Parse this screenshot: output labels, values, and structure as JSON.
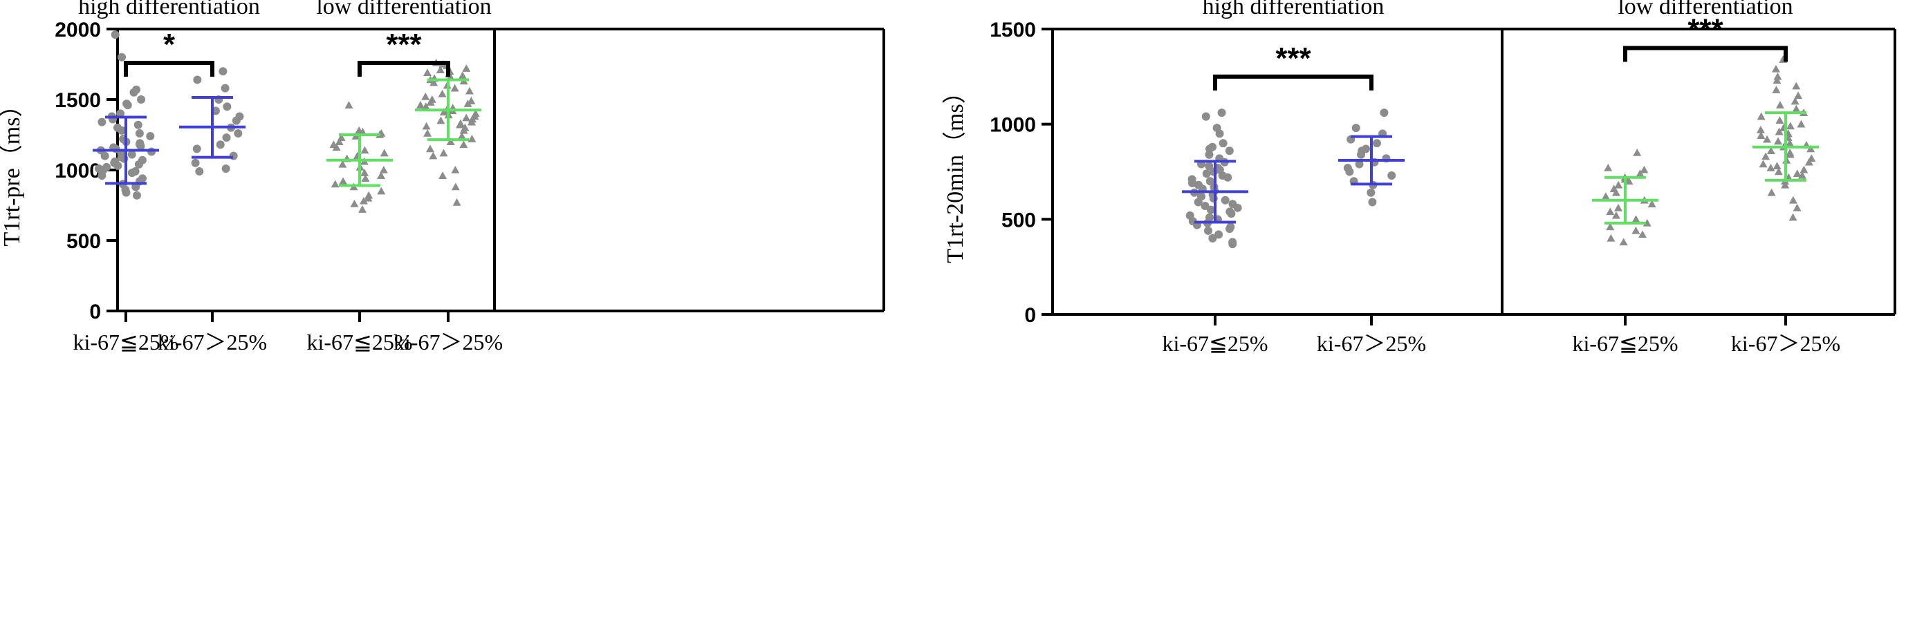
{
  "chart_data": [
    {
      "type": "scatter",
      "subtype": "dot-plot with mean and SD",
      "ylabel": "T1rt-pre（ms）",
      "ylim": [
        0,
        2000
      ],
      "yticks": [
        0,
        500,
        1000,
        1500,
        2000
      ],
      "panels": [
        {
          "title": "high differentiation",
          "categories": [
            "ki-67≦25%",
            "ki-67＞25%"
          ],
          "color": "#4040d8",
          "groups": [
            {
              "mean": 1140,
              "upper": 1375,
              "lower": 905,
              "marker": "circle",
              "values": [
                1960,
                1800,
                1570,
                1550,
                1500,
                1470,
                1460,
                1400,
                1380,
                1360,
                1340,
                1320,
                1300,
                1280,
                1260,
                1240,
                1220,
                1200,
                1190,
                1180,
                1170,
                1160,
                1150,
                1140,
                1130,
                1120,
                1110,
                1100,
                1090,
                1080,
                1070,
                1060,
                1050,
                1040,
                1030,
                1020,
                1010,
                1000,
                990,
                980,
                960,
                940,
                920,
                900,
                880,
                860,
                840,
                820
              ]
            },
            {
              "mean": 1305,
              "upper": 1515,
              "lower": 1090,
              "marker": "circle",
              "values": [
                1700,
                1640,
                1580,
                1500,
                1450,
                1420,
                1380,
                1350,
                1300,
                1260,
                1230,
                1180,
                1150,
                1100,
                1050,
                1010,
                990
              ]
            }
          ],
          "significance": "*"
        },
        {
          "title": "low differentiation",
          "categories": [
            "ki-67≦25%",
            "ki-67＞25%"
          ],
          "color": "#60e060",
          "groups": [
            {
              "mean": 1070,
              "upper": 1250,
              "lower": 890,
              "marker": "triangle",
              "values": [
                1460,
                1280,
                1270,
                1260,
                1250,
                1240,
                1230,
                1200,
                1180,
                1160,
                1140,
                1120,
                1100,
                1080,
                1060,
                1040,
                1020,
                1000,
                980,
                960,
                940,
                920,
                900,
                880,
                850,
                820,
                800,
                780,
                760,
                720
              ]
            },
            {
              "mean": 1425,
              "upper": 1640,
              "lower": 1215,
              "marker": "triangle",
              "values": [
                1760,
                1750,
                1740,
                1720,
                1710,
                1700,
                1690,
                1680,
                1670,
                1660,
                1650,
                1640,
                1630,
                1620,
                1600,
                1580,
                1560,
                1540,
                1520,
                1500,
                1490,
                1480,
                1470,
                1460,
                1450,
                1440,
                1430,
                1420,
                1410,
                1400,
                1390,
                1380,
                1370,
                1360,
                1350,
                1340,
                1330,
                1320,
                1310,
                1300,
                1280,
                1260,
                1240,
                1220,
                1200,
                1180,
                1150,
                1120,
                1100,
                1000,
                960,
                880,
                770
              ]
            }
          ],
          "significance": "***"
        }
      ]
    },
    {
      "type": "scatter",
      "subtype": "dot-plot with mean and SD",
      "ylabel": "T1rt-20min（ms）",
      "ylim": [
        0,
        1500
      ],
      "yticks": [
        0,
        500,
        1000,
        1500
      ],
      "panels": [
        {
          "title": "high differentiation",
          "categories": [
            "ki-67≦25%",
            "ki-67＞25%"
          ],
          "color": "#4040d8",
          "groups": [
            {
              "mean": 645,
              "upper": 805,
              "lower": 485,
              "marker": "circle",
              "values": [
                1060,
                1040,
                980,
                950,
                900,
                880,
                870,
                860,
                840,
                820,
                800,
                790,
                780,
                770,
                760,
                750,
                740,
                730,
                720,
                710,
                700,
                690,
                680,
                670,
                660,
                650,
                640,
                630,
                620,
                610,
                600,
                590,
                580,
                570,
                560,
                550,
                540,
                530,
                520,
                510,
                500,
                490,
                480,
                470,
                460,
                450,
                440,
                420,
                400,
                380,
                370
              ]
            },
            {
              "mean": 810,
              "upper": 935,
              "lower": 685,
              "marker": "circle",
              "values": [
                1060,
                980,
                950,
                920,
                900,
                870,
                860,
                840,
                820,
                800,
                790,
                770,
                750,
                730,
                700,
                680,
                640,
                590
              ]
            }
          ],
          "significance": "***"
        },
        {
          "title": "low differentiation",
          "categories": [
            "ki-67≦25%",
            "ki-67＞25%"
          ],
          "color": "#60e060",
          "groups": [
            {
              "mean": 600,
              "upper": 720,
              "lower": 480,
              "marker": "triangle",
              "values": [
                850,
                770,
                760,
                740,
                720,
                710,
                700,
                680,
                660,
                640,
                620,
                600,
                580,
                560,
                540,
                520,
                500,
                480,
                460,
                440,
                420,
                400,
                380
              ]
            },
            {
              "mean": 880,
              "upper": 1060,
              "lower": 705,
              "marker": "triangle",
              "values": [
                1340,
                1290,
                1250,
                1230,
                1200,
                1180,
                1150,
                1120,
                1100,
                1080,
                1060,
                1040,
                1020,
                1000,
                990,
                980,
                970,
                960,
                950,
                940,
                930,
                920,
                910,
                900,
                890,
                880,
                870,
                860,
                850,
                840,
                830,
                820,
                810,
                800,
                790,
                780,
                770,
                760,
                750,
                740,
                730,
                720,
                700,
                680,
                640,
                600,
                560,
                510
              ]
            }
          ],
          "significance": "***"
        }
      ]
    }
  ]
}
